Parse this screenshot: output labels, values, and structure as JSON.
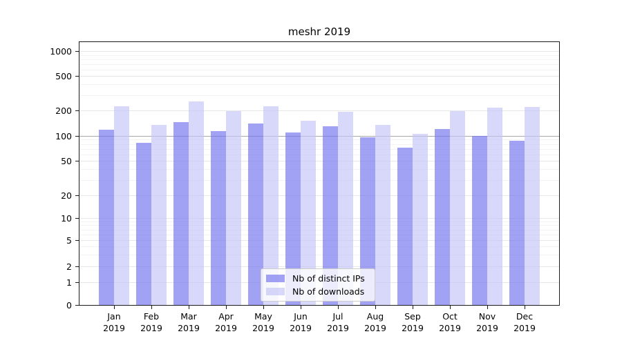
{
  "chart_data": {
    "type": "bar",
    "title": "meshr 2019",
    "categories": [
      "Jan",
      "Feb",
      "Mar",
      "Apr",
      "May",
      "Jun",
      "Jul",
      "Aug",
      "Sep",
      "Oct",
      "Nov",
      "Dec"
    ],
    "year_label": "2019",
    "series": [
      {
        "name": "Nb of distinct IPs",
        "color": "#7070ee",
        "values": [
          118,
          83,
          146,
          113,
          140,
          109,
          129,
          96,
          72,
          121,
          100,
          87
        ]
      },
      {
        "name": "Nb of downloads",
        "color": "#c3c3f7",
        "values": [
          225,
          135,
          255,
          195,
          224,
          150,
          192,
          135,
          105,
          196,
          215,
          218
        ]
      }
    ],
    "yticks": [
      0,
      1,
      2,
      5,
      10,
      20,
      50,
      100,
      200,
      500,
      1000
    ],
    "yscale": "symlog",
    "ylim": [
      0,
      1000
    ],
    "grid": true,
    "emphasized_gridline_value": 100,
    "legend_position": "lower center"
  }
}
